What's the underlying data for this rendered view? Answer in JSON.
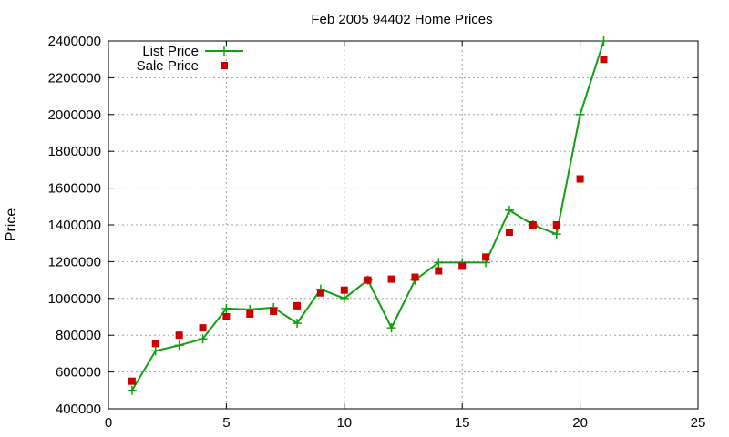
{
  "chart_data": {
    "type": "line",
    "title": "Feb 2005 94402 Home Prices",
    "xlabel": "",
    "ylabel": "Price",
    "xlim": [
      0,
      25
    ],
    "ylim": [
      400000,
      2400000
    ],
    "x_ticks": [
      0,
      5,
      10,
      15,
      20,
      25
    ],
    "y_ticks": [
      400000,
      600000,
      800000,
      1000000,
      1200000,
      1400000,
      1600000,
      1800000,
      2000000,
      2200000,
      2400000
    ],
    "grid": true,
    "legend_position": "top-left",
    "series": [
      {
        "name": "List Price",
        "style": "line+cross",
        "color": "#11a011",
        "x": [
          1,
          2,
          3,
          4,
          5,
          6,
          7,
          8,
          9,
          10,
          11,
          12,
          13,
          14,
          15,
          16,
          17,
          18,
          19,
          20,
          21
        ],
        "y": [
          500000,
          715000,
          745000,
          780000,
          945000,
          940000,
          950000,
          865000,
          1050000,
          1000000,
          1100000,
          840000,
          1100000,
          1195000,
          1195000,
          1195000,
          1480000,
          1400000,
          1350000,
          2000000,
          2400000
        ]
      },
      {
        "name": "Sale Price",
        "style": "square",
        "color": "#cc0000",
        "x": [
          1,
          2,
          3,
          4,
          5,
          6,
          7,
          8,
          9,
          10,
          11,
          12,
          13,
          14,
          15,
          16,
          17,
          18,
          19,
          20,
          21
        ],
        "y": [
          550000,
          755000,
          800000,
          840000,
          900000,
          915000,
          930000,
          960000,
          1030000,
          1045000,
          1100000,
          1105000,
          1115000,
          1150000,
          1175000,
          1225000,
          1360000,
          1400000,
          1400000,
          1650000,
          2300000
        ]
      }
    ]
  }
}
